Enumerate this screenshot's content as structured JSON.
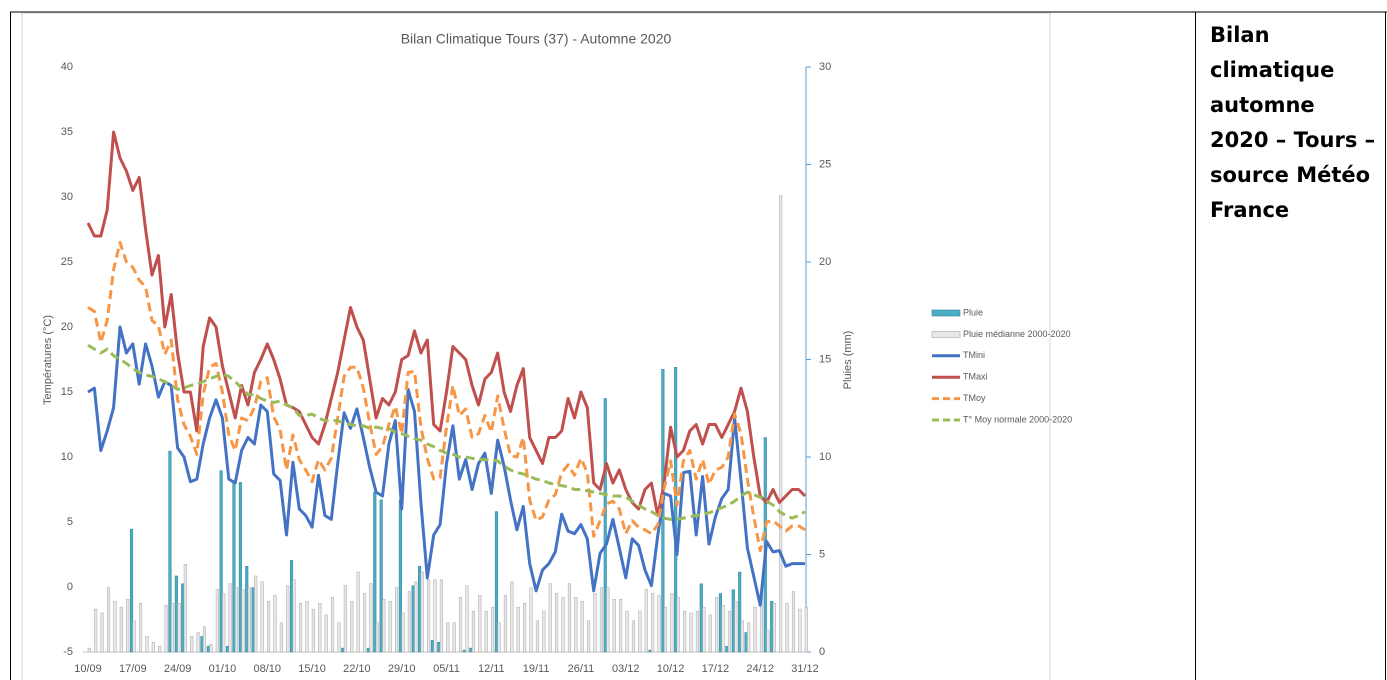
{
  "chart_data": {
    "type": "combo",
    "title": "Bilan Climatique Tours (37) - Automne 2020",
    "ylabel": "Températures (°C)",
    "y2label": "Pluies (mm)",
    "legend": "right",
    "grid": false,
    "ylim": [
      -5,
      40
    ],
    "yticks": [
      -5,
      0,
      5,
      10,
      15,
      20,
      25,
      30,
      35,
      40
    ],
    "y2lim": [
      0,
      30
    ],
    "y2ticks": [
      0,
      5,
      10,
      15,
      20,
      25,
      30
    ],
    "categories": [
      "10/09",
      null,
      null,
      null,
      null,
      null,
      null,
      "17/09",
      null,
      null,
      null,
      null,
      null,
      null,
      "24/09",
      null,
      null,
      null,
      null,
      null,
      null,
      "01/10",
      null,
      null,
      null,
      null,
      null,
      null,
      "08/10",
      null,
      null,
      null,
      null,
      null,
      null,
      "15/10",
      null,
      null,
      null,
      null,
      null,
      null,
      "22/10",
      null,
      null,
      null,
      null,
      null,
      null,
      "29/10",
      null,
      null,
      null,
      null,
      null,
      null,
      "05/11",
      null,
      null,
      null,
      null,
      null,
      null,
      "12/11",
      null,
      null,
      null,
      null,
      null,
      null,
      "19/11",
      null,
      null,
      null,
      null,
      null,
      null,
      "26/11",
      null,
      null,
      null,
      null,
      null,
      null,
      "03/12",
      null,
      null,
      null,
      null,
      null,
      null,
      "10/12",
      null,
      null,
      null,
      null,
      null,
      null,
      "17/12",
      null,
      null,
      null,
      null,
      null,
      null,
      "24/12",
      null,
      null,
      null,
      null,
      null,
      null,
      "31/12"
    ],
    "series": [
      {
        "name": "Pluie",
        "kind": "bar",
        "axis": "y2",
        "color": "#4bacc6",
        "values": [
          0,
          0,
          0,
          0,
          0,
          0,
          0,
          6.3,
          0,
          0,
          0,
          0,
          0,
          10.3,
          3.9,
          3.5,
          0,
          0,
          0.8,
          0.3,
          0,
          9.3,
          0.3,
          8.8,
          8.7,
          4.4,
          3.3,
          0,
          0,
          0,
          0,
          0,
          4.7,
          0,
          0,
          0,
          0,
          0,
          0,
          0,
          0.2,
          0,
          0,
          0,
          0.2,
          8.2,
          7.8,
          0,
          0,
          7.8,
          0,
          3.4,
          4.4,
          0,
          0.6,
          0.5,
          0,
          0,
          0,
          0.1,
          0.2,
          0,
          0,
          0,
          7.2,
          0,
          0,
          0,
          0,
          0,
          0,
          0,
          0,
          0,
          0,
          0,
          0,
          0,
          0,
          0,
          0,
          13,
          0,
          0,
          0,
          0,
          0,
          0,
          0.1,
          0,
          14.5,
          0,
          14.6,
          0,
          0,
          0,
          3.5,
          0,
          0,
          3,
          0.3,
          3.2,
          4.1,
          1,
          0,
          0,
          11,
          2.6,
          0,
          0,
          0,
          0,
          0
        ]
      },
      {
        "name": "Pluie médianne 2000-2020",
        "kind": "bar",
        "axis": "y2",
        "color": "#e8e8e8",
        "values": [
          0.2,
          2.2,
          2,
          3.3,
          2.6,
          2.3,
          2.7,
          1.6,
          2.5,
          0.8,
          0.5,
          0.3,
          2.4,
          2.5,
          2.5,
          4.5,
          0.8,
          1,
          1.3,
          0.4,
          3.2,
          3,
          3.5,
          3.3,
          3.2,
          3.3,
          3.9,
          3.6,
          2.6,
          2.9,
          1.5,
          3.4,
          3.7,
          2.5,
          2.6,
          2.2,
          2.5,
          1.9,
          2.8,
          1.5,
          3.4,
          2.6,
          4.1,
          3,
          3.5,
          1.5,
          2.7,
          2.6,
          3.3,
          2,
          3.1,
          3.6,
          4.1,
          3.7,
          3.7,
          3.7,
          1.5,
          1.5,
          2.8,
          3.4,
          2.1,
          2.9,
          2.1,
          2.3,
          1.5,
          2.9,
          3.6,
          2.3,
          2.5,
          3.3,
          1.6,
          2.1,
          3.5,
          3,
          2.8,
          3.5,
          2.8,
          2.6,
          1.6,
          3,
          3.3,
          3.3,
          2.7,
          2.7,
          2.1,
          1.6,
          2.1,
          3.2,
          3,
          2.9,
          2.3,
          3,
          2.8,
          2.1,
          2,
          2.1,
          2.3,
          1.9,
          2.8,
          2.4,
          2.1,
          2.6,
          1.6,
          1.5,
          2.3,
          3,
          1.1,
          2.5,
          23.4,
          2.5,
          3.1,
          2.2,
          2.3
        ]
      },
      {
        "name": "TMini",
        "kind": "line",
        "color": "#4472c4",
        "values": [
          15,
          15.3,
          10.5,
          12,
          13.8,
          20,
          18,
          18.7,
          15.6,
          18.7,
          17,
          14.6,
          15.8,
          15.5,
          10.7,
          10,
          8.1,
          8.3,
          11,
          13,
          14.4,
          13,
          8.3,
          8,
          10.5,
          11.5,
          11,
          14,
          13.5,
          8.7,
          8.2,
          4,
          9.6,
          6,
          5.5,
          4.6,
          8.6,
          5.5,
          5.2,
          9.5,
          13.4,
          12.2,
          13.7,
          11.5,
          9.2,
          7.3,
          7,
          11,
          12.8,
          6,
          15.2,
          13.5,
          6.5,
          0.7,
          4,
          4.8,
          9.5,
          12.4,
          8.3,
          9.8,
          7.5,
          9.5,
          10.3,
          7.2,
          11.3,
          9.3,
          6.7,
          4.4,
          6.2,
          1.8,
          -0.3,
          1.3,
          1.8,
          2.7,
          5.6,
          4.3,
          4.1,
          4.8,
          3.7,
          -0.3,
          2.6,
          3.3,
          5.2,
          3,
          0.7,
          3.7,
          3.2,
          1.3,
          0.1,
          4,
          7.2,
          7,
          2.5,
          8.8,
          8.9,
          4,
          8.5,
          3.3,
          5.4,
          6.8,
          7.5,
          13,
          8.2,
          3,
          0.8,
          -1.4,
          3.5,
          2.7,
          2.8,
          1.6,
          1.8,
          1.8,
          1.8
        ]
      },
      {
        "name": "TMaxi",
        "kind": "line",
        "color": "#c0504d",
        "values": [
          28,
          27,
          27,
          29,
          35,
          33,
          32,
          30.5,
          31.5,
          27.5,
          24,
          25.5,
          20,
          22.5,
          18,
          15,
          15,
          12,
          18.5,
          20.7,
          20,
          17,
          15,
          13,
          15.5,
          14,
          16.5,
          17.5,
          18.7,
          17.5,
          16,
          14,
          13.8,
          13.5,
          12.5,
          11.5,
          11,
          12.5,
          14.5,
          16.5,
          19,
          21.5,
          20,
          19,
          16,
          13,
          14.5,
          14,
          15,
          17.5,
          17.8,
          19.7,
          18,
          19,
          12.5,
          12,
          15,
          18.5,
          18,
          17.5,
          15.5,
          14,
          16,
          16.5,
          18,
          15,
          13.5,
          15.5,
          16.8,
          11.5,
          10.5,
          9.5,
          11.5,
          11.5,
          12,
          14.5,
          13,
          15,
          13.8,
          8,
          7.5,
          9.5,
          8,
          9,
          7.5,
          6.5,
          6,
          7.5,
          8,
          5.5,
          8,
          12.3,
          10,
          10.5,
          12,
          12.5,
          11,
          12.5,
          12.5,
          11.5,
          12.5,
          13.5,
          15.3,
          13.5,
          10,
          7,
          6.5,
          7.5,
          6.5,
          7,
          7.5,
          7.5,
          7
        ]
      },
      {
        "name": "TMoy",
        "kind": "line",
        "dash": true,
        "color": "#f79646",
        "values": [
          21.5,
          21.2,
          18.8,
          20.5,
          24.4,
          26.5,
          25,
          24.6,
          23.6,
          23.1,
          20.5,
          20.1,
          17.9,
          19,
          14.4,
          12.5,
          11.6,
          10.2,
          14.8,
          16.9,
          17.2,
          15,
          11.7,
          10.5,
          13,
          12.8,
          13.8,
          15.8,
          16.1,
          13.1,
          12.1,
          9,
          11.7,
          9.8,
          9,
          8.1,
          9.8,
          9,
          9.9,
          13,
          16.2,
          16.9,
          16.9,
          15.3,
          12.6,
          10.2,
          10.8,
          12.5,
          13.9,
          11.8,
          16.5,
          16.6,
          12.3,
          9.9,
          8.3,
          8.4,
          12.3,
          15.5,
          13.2,
          13.7,
          11.5,
          11.8,
          13.2,
          11.9,
          14.7,
          12.2,
          10.1,
          10,
          11.5,
          6.7,
          5.1,
          5.4,
          6.7,
          7.1,
          8.8,
          9.4,
          8.6,
          9.9,
          8.8,
          3.9,
          5.1,
          6.4,
          6.6,
          6,
          4.1,
          5.1,
          4.6,
          4.4,
          4.1,
          4.8,
          7.6,
          9.7,
          6.3,
          9.7,
          10.5,
          8.3,
          9.8,
          7.9,
          9,
          9.2,
          10,
          13.3,
          11.8,
          8.3,
          5.4,
          2.8,
          5,
          5.1,
          4.7,
          4.3,
          4.7,
          4.7,
          4.4
        ]
      },
      {
        "name": "T° Moy normale 2000-2020",
        "kind": "line",
        "dash": true,
        "color": "#9bbb59",
        "values": [
          18.6,
          18.3,
          18,
          18.3,
          17.8,
          17.5,
          17.2,
          16.8,
          16.5,
          16.3,
          16.2,
          16,
          15.8,
          15.5,
          15.2,
          15.3,
          15.5,
          15.6,
          15.8,
          16,
          16.2,
          16.4,
          16.2,
          15.8,
          15.3,
          14.8,
          14.8,
          14.5,
          14.3,
          14.2,
          14.3,
          14,
          13.8,
          13.2,
          13.2,
          13.3,
          13,
          12.8,
          12.8,
          12.8,
          12.6,
          12.5,
          12.4,
          12.4,
          12.2,
          12.3,
          12.2,
          12.2,
          11.9,
          11.8,
          11.6,
          11.4,
          11.3,
          11,
          10.8,
          10.5,
          10.3,
          10.2,
          10,
          10,
          9.9,
          9.8,
          9.8,
          9.8,
          9.7,
          9.3,
          9,
          8.8,
          8.7,
          8.5,
          8.3,
          8.2,
          8,
          7.9,
          7.8,
          7.7,
          7.5,
          7.5,
          7.4,
          7.3,
          7.2,
          7.1,
          7,
          7,
          6.9,
          6.6,
          6.3,
          6,
          5.8,
          5.5,
          5.3,
          5.2,
          5.2,
          5.3,
          5.4,
          5.5,
          5.6,
          5.7,
          5.9,
          6.1,
          6.3,
          6.6,
          7,
          7.3,
          7.1,
          6.9,
          6.6,
          6.3,
          5.8,
          5.5,
          5.3,
          5.5,
          5.8
        ]
      }
    ]
  },
  "side_text": "Bilan climatique automne 2020 – Tours – source Météo France"
}
